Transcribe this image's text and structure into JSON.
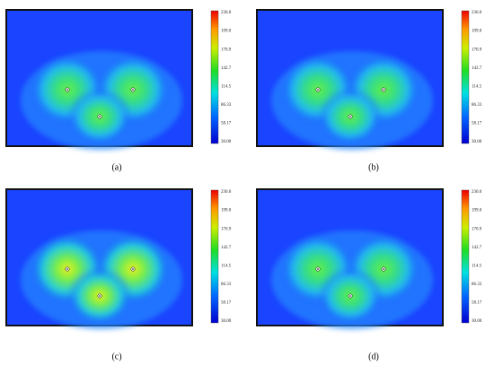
{
  "panels": [
    {
      "label": "(a)",
      "colorbar_ticks": [
        "230.0",
        "199.0",
        "170.9",
        "142.7",
        "114.5",
        "86.33",
        "58.17",
        "30.00"
      ]
    },
    {
      "label": "(b)",
      "colorbar_ticks": [
        "230.0",
        "199.0",
        "170.9",
        "142.7",
        "114.5",
        "86.33",
        "58.17",
        "30.00"
      ]
    },
    {
      "label": "(c)",
      "colorbar_ticks": [
        "230.0",
        "199.0",
        "170.9",
        "142.7",
        "114.5",
        "86.33",
        "58.17",
        "30.00"
      ]
    },
    {
      "label": "(d)",
      "colorbar_ticks": [
        "230.0",
        "199.0",
        "170.9",
        "142.7",
        "114.5",
        "86.33",
        "58.17",
        "30.00"
      ]
    }
  ]
}
